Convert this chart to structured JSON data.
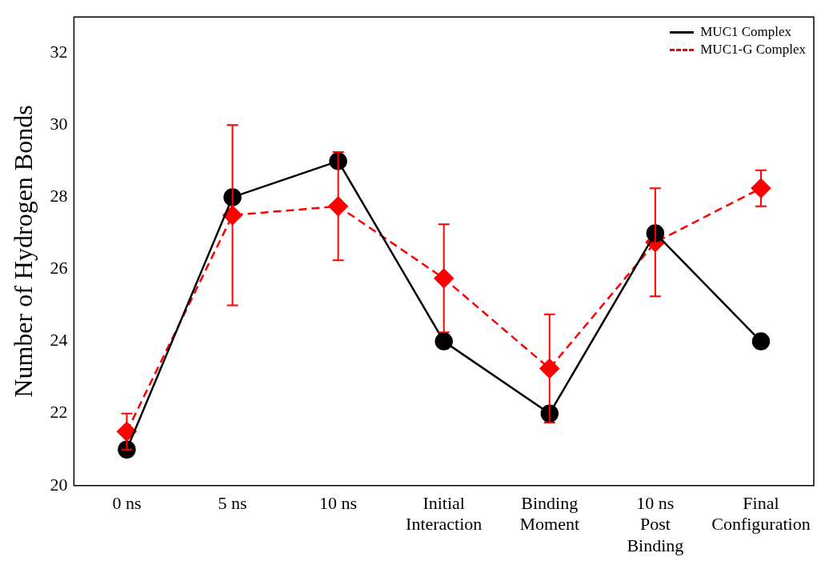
{
  "chart_data": {
    "type": "line",
    "ylabel": "Number of Hydrogen Bonds",
    "categories": [
      "0 ns",
      "5 ns",
      "10 ns",
      "Initial\nInteraction",
      "Binding\nMoment",
      "10 ns\nPost\nBinding",
      "Final\nConfiguration"
    ],
    "series": [
      {
        "name": "MUC1 Complex",
        "color": "#000000",
        "values": [
          21,
          28,
          29,
          24,
          22,
          27,
          24
        ],
        "marker": "circle",
        "line_style": "solid"
      },
      {
        "name": "MUC1-G Complex",
        "color": "#ff0000",
        "values": [
          21.5,
          27.5,
          27.75,
          25.75,
          23.25,
          26.75,
          28.25
        ],
        "errors": [
          0.5,
          2.5,
          1.5,
          1.5,
          1.5,
          1.5,
          0.5
        ],
        "marker": "diamond",
        "line_style": "dashed"
      }
    ],
    "ylim": [
      20,
      33
    ],
    "yticks": [
      20,
      22,
      24,
      26,
      28,
      30,
      32
    ],
    "grid": false,
    "legend": "top right"
  }
}
